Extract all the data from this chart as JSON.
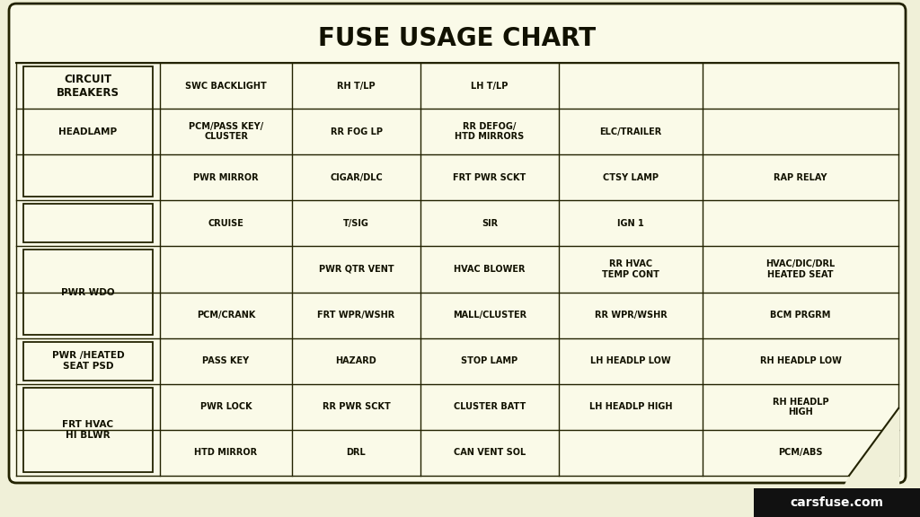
{
  "title": "FUSE USAGE CHART",
  "bg_outer": "#f0f0d8",
  "bg_color": "#fafae8",
  "border_color": "#222200",
  "text_color": "#111100",
  "watermark": "carsfuse.com",
  "rows": [
    [
      "SWC BACKLIGHT",
      "RH T/LP",
      "LH T/LP",
      "",
      ""
    ],
    [
      "PCM/PASS KEY/\nCLUSTER",
      "RR FOG LP",
      "RR DEFOG/\nHTD MIRRORS",
      "ELC/TRAILER",
      ""
    ],
    [
      "PWR MIRROR",
      "CIGAR/DLC",
      "FRT PWR SCKT",
      "CTSY LAMP",
      "RAP RELAY"
    ],
    [
      "CRUISE",
      "T/SIG",
      "SIR",
      "IGN 1",
      ""
    ],
    [
      "",
      "PWR QTR VENT",
      "HVAC BLOWER",
      "RR HVAC\nTEMP CONT",
      "HVAC/DIC/DRL\nHEATED SEAT"
    ],
    [
      "PCM/CRANK",
      "FRT WPR/WSHR",
      "MALL/CLUSTER",
      "RR WPR/WSHR",
      "BCM PRGRM"
    ],
    [
      "PASS KEY",
      "HAZARD",
      "STOP LAMP",
      "LH HEADLP LOW",
      "RH HEADLP LOW"
    ],
    [
      "PWR LOCK",
      "RR PWR SCKT",
      "CLUSTER BATT",
      "LH HEADLP HIGH",
      "RH HEADLP\nHIGH"
    ],
    [
      "HTD MIRROR",
      "DRL",
      "CAN VENT SOL",
      "",
      "PCM/ABS"
    ]
  ],
  "cb_boxes": [
    {
      "label": "HEADLAMP",
      "r1": 0,
      "r2": 3
    },
    {
      "label": "",
      "r1": 3,
      "r2": 4
    },
    {
      "label": "PWR WDO",
      "r1": 4,
      "r2": 6
    },
    {
      "label": "PWR /HEATED\nSEAT PSD",
      "r1": 6,
      "r2": 7
    },
    {
      "label": "FRT HVAC\nHI BLWR",
      "r1": 7,
      "r2": 9
    }
  ]
}
